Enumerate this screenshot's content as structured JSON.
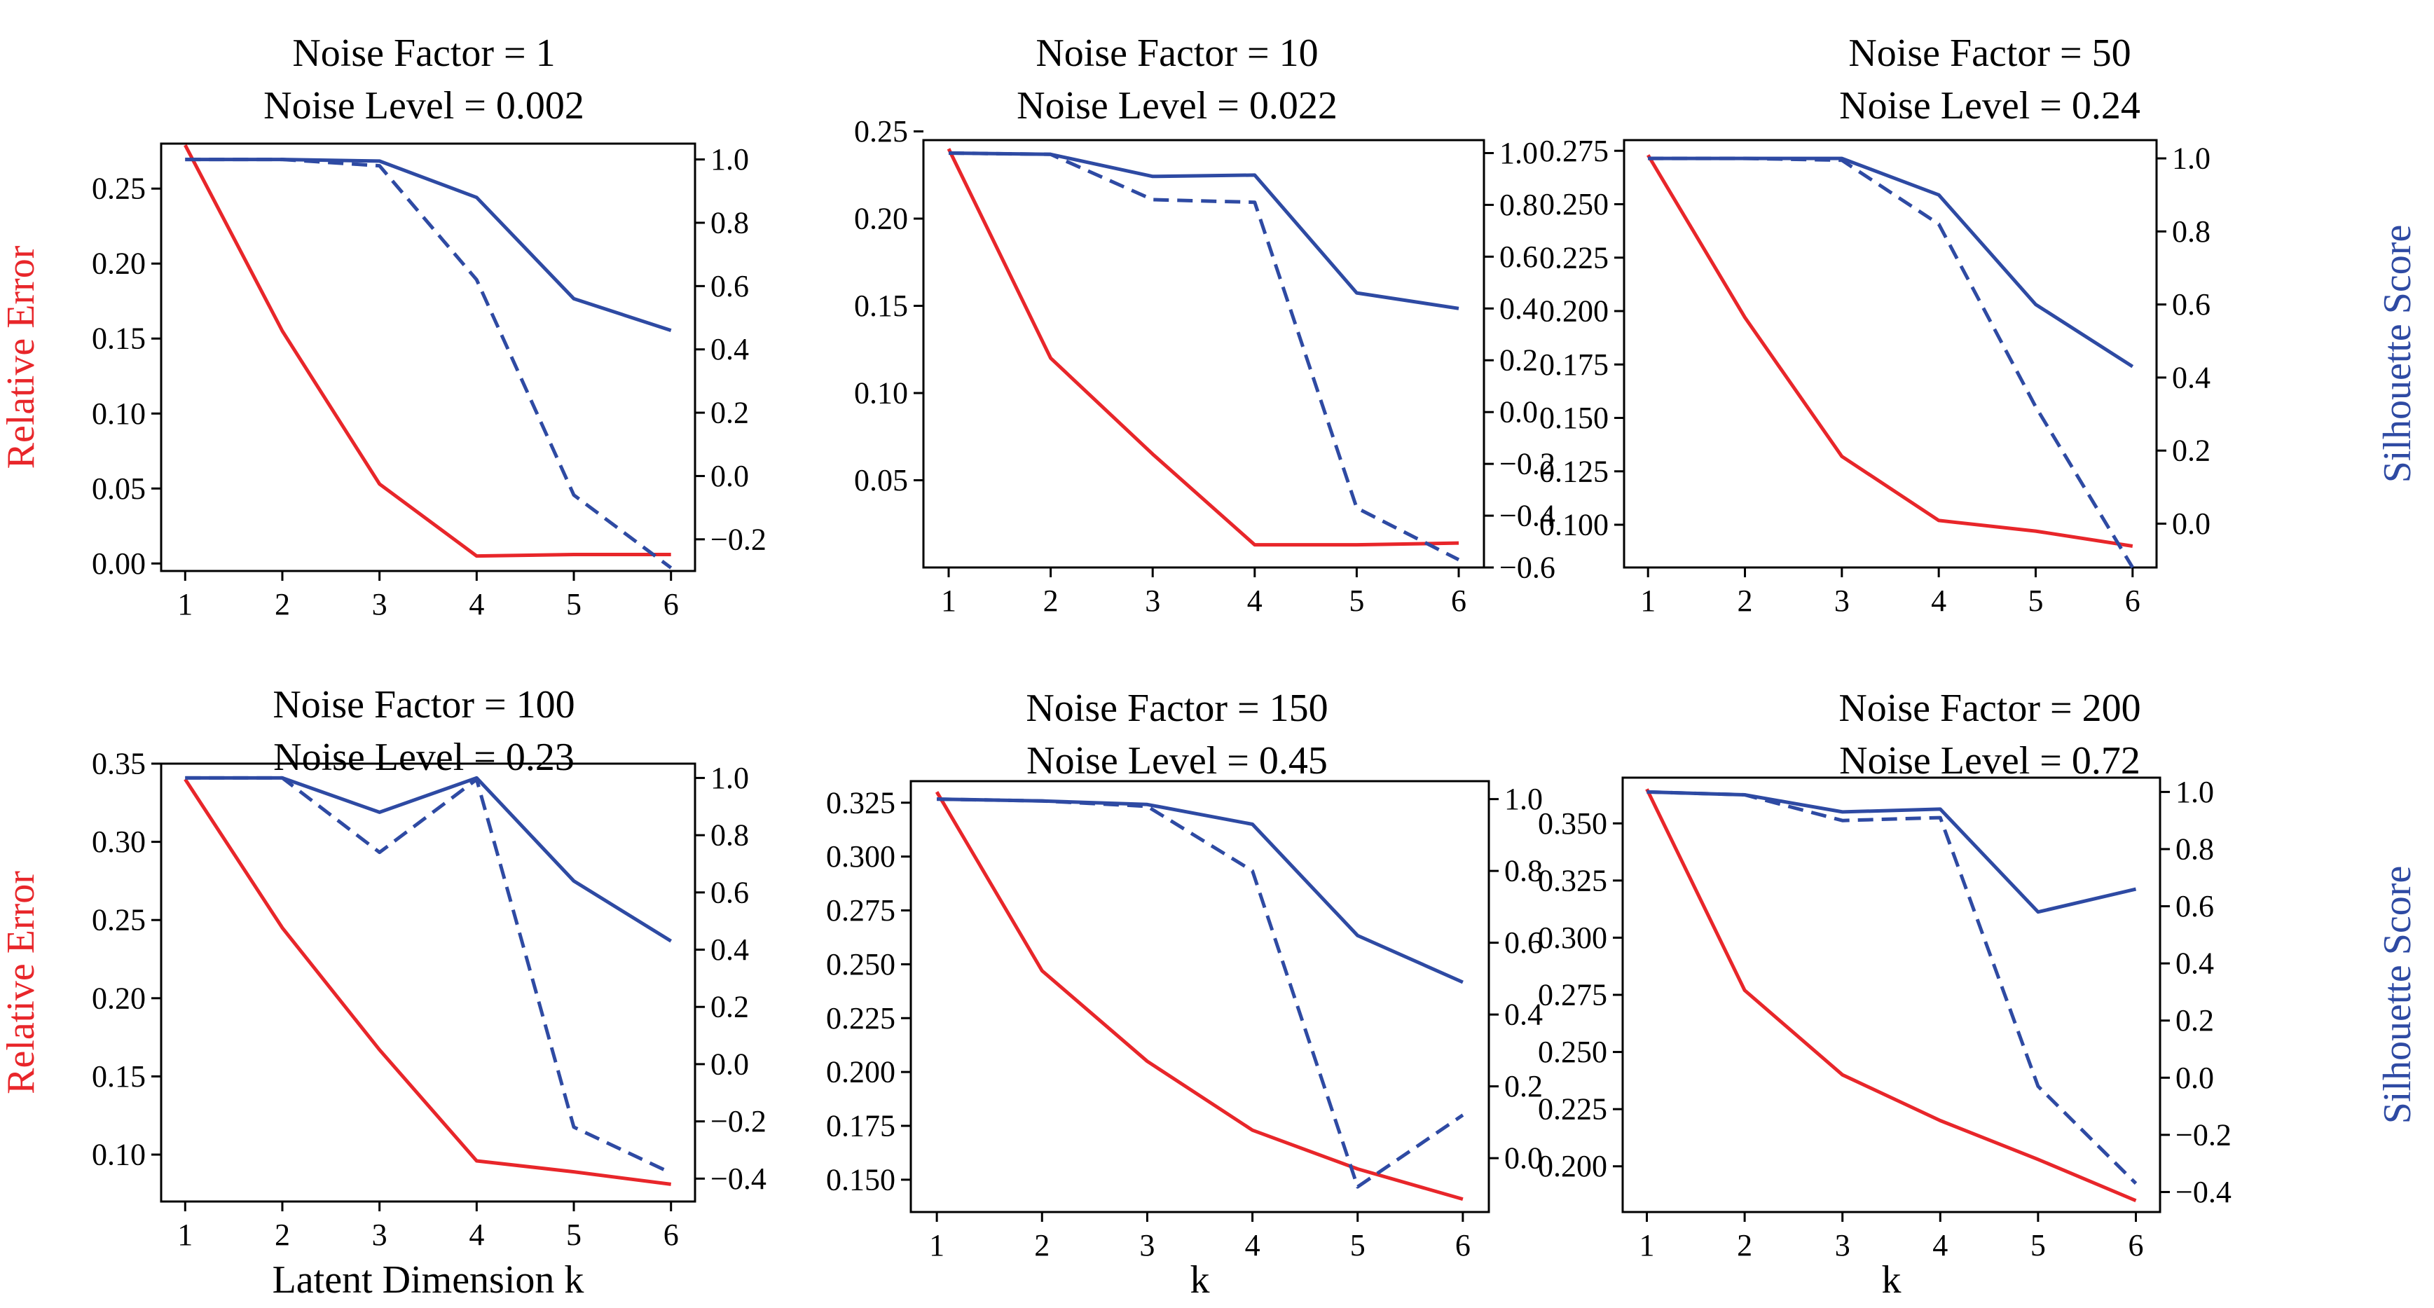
{
  "colors": {
    "relative_error": "#e8262a",
    "silhouette_score": "#2e4aa3",
    "axes": "#000000"
  },
  "chart_data": [
    {
      "type": "line",
      "title_lines": [
        "Noise Factor = 1",
        "Noise Level = 0.002"
      ],
      "x": [
        1,
        2,
        3,
        4,
        5,
        6
      ],
      "xlabel": "",
      "ylabel_left": "Relative Error",
      "ylabel_right": "",
      "left_ylim": [
        -0.005,
        0.28
      ],
      "left_ticks": [
        "0.00",
        "0.05",
        "0.10",
        "0.15",
        "0.20",
        "0.25"
      ],
      "right_ylim": [
        -0.3,
        1.05
      ],
      "right_ticks": [
        "−0.2",
        "0.0",
        "0.2",
        "0.4",
        "0.6",
        "0.8",
        "1.0"
      ],
      "series": [
        {
          "axis": "left",
          "style": "solid",
          "color": "#e8262a",
          "values": [
            0.279,
            0.155,
            0.053,
            0.005,
            0.006,
            0.006
          ]
        },
        {
          "axis": "right",
          "style": "solid",
          "color": "#2e4aa3",
          "values": [
            1.0,
            1.0,
            0.995,
            0.88,
            0.56,
            0.46
          ]
        },
        {
          "axis": "right",
          "style": "dashed",
          "color": "#2e4aa3",
          "values": [
            1.0,
            1.0,
            0.98,
            0.62,
            -0.06,
            -0.29
          ]
        }
      ]
    },
    {
      "type": "line",
      "title_lines": [
        "Noise Factor = 10",
        "Noise Level = 0.022"
      ],
      "x": [
        1,
        2,
        3,
        4,
        5,
        6
      ],
      "xlabel": "",
      "ylabel_left": "",
      "ylabel_right": "",
      "left_ylim": [
        0.0,
        0.245
      ],
      "left_ticks": [
        "0.05",
        "0.10",
        "0.15",
        "0.20",
        "0.25"
      ],
      "right_ylim": [
        -0.6,
        1.05
      ],
      "right_ticks": [
        "−0.6",
        "−0.4",
        "−0.2",
        "0.0",
        "0.2",
        "0.4",
        "0.6",
        "0.8",
        "1.0"
      ],
      "series": [
        {
          "axis": "left",
          "style": "solid",
          "color": "#e8262a",
          "values": [
            0.24,
            0.12,
            0.065,
            0.013,
            0.013,
            0.014
          ]
        },
        {
          "axis": "right",
          "style": "solid",
          "color": "#2e4aa3",
          "values": [
            1.0,
            0.995,
            0.91,
            0.915,
            0.46,
            0.4
          ]
        },
        {
          "axis": "right",
          "style": "dashed",
          "color": "#2e4aa3",
          "values": [
            1.0,
            0.995,
            0.82,
            0.81,
            -0.37,
            -0.57
          ]
        }
      ]
    },
    {
      "type": "line",
      "title_lines": [
        "Noise Factor = 50",
        "Noise Level = 0.24"
      ],
      "x": [
        1,
        2,
        3,
        4,
        5,
        6
      ],
      "xlabel": "",
      "ylabel_left": "",
      "ylabel_right": "Silhouette Score",
      "left_ylim": [
        0.08,
        0.28
      ],
      "left_ticks": [
        "0.100",
        "0.125",
        "0.150",
        "0.175",
        "0.200",
        "0.225",
        "0.250",
        "0.275"
      ],
      "right_ylim": [
        -0.12,
        1.05
      ],
      "right_ticks": [
        "0.0",
        "0.2",
        "0.4",
        "0.6",
        "0.8",
        "1.0"
      ],
      "series": [
        {
          "axis": "left",
          "style": "solid",
          "color": "#e8262a",
          "values": [
            0.273,
            0.197,
            0.132,
            0.102,
            0.097,
            0.09
          ]
        },
        {
          "axis": "right",
          "style": "solid",
          "color": "#2e4aa3",
          "values": [
            1.0,
            1.0,
            1.0,
            0.9,
            0.6,
            0.43
          ]
        },
        {
          "axis": "right",
          "style": "dashed",
          "color": "#2e4aa3",
          "values": [
            1.0,
            1.0,
            0.995,
            0.82,
            0.32,
            -0.12
          ]
        }
      ]
    },
    {
      "type": "line",
      "title_lines": [
        "Noise Factor = 100",
        "Noise Level = 0.23"
      ],
      "x": [
        1,
        2,
        3,
        4,
        5,
        6
      ],
      "xlabel": "Latent Dimension k",
      "ylabel_left": "Relative Error",
      "ylabel_right": "",
      "left_ylim": [
        0.07,
        0.35
      ],
      "left_ticks": [
        "0.10",
        "0.15",
        "0.20",
        "0.25",
        "0.30",
        "0.35"
      ],
      "right_ylim": [
        -0.48,
        1.05
      ],
      "right_ticks": [
        "−0.4",
        "−0.2",
        "0.0",
        "0.2",
        "0.4",
        "0.6",
        "0.8",
        "1.0"
      ],
      "series": [
        {
          "axis": "left",
          "style": "solid",
          "color": "#e8262a",
          "values": [
            0.34,
            0.245,
            0.167,
            0.096,
            0.089,
            0.081
          ]
        },
        {
          "axis": "right",
          "style": "solid",
          "color": "#2e4aa3",
          "values": [
            1.0,
            1.0,
            0.88,
            1.0,
            0.64,
            0.43
          ]
        },
        {
          "axis": "right",
          "style": "dashed",
          "color": "#2e4aa3",
          "values": [
            1.0,
            1.0,
            0.74,
            0.995,
            -0.22,
            -0.38
          ]
        }
      ]
    },
    {
      "type": "line",
      "title_lines": [
        "Noise Factor = 150",
        "Noise Level = 0.45"
      ],
      "x": [
        1,
        2,
        3,
        4,
        5,
        6
      ],
      "xlabel": "k",
      "ylabel_left": "",
      "ylabel_right": "",
      "left_ylim": [
        0.135,
        0.335
      ],
      "left_ticks": [
        "0.150",
        "0.175",
        "0.200",
        "0.225",
        "0.250",
        "0.275",
        "0.300",
        "0.325"
      ],
      "right_ylim": [
        -0.15,
        1.05
      ],
      "right_ticks": [
        "0.0",
        "0.2",
        "0.4",
        "0.6",
        "0.8",
        "1.0"
      ],
      "series": [
        {
          "axis": "left",
          "style": "solid",
          "color": "#e8262a",
          "values": [
            0.33,
            0.247,
            0.205,
            0.173,
            0.155,
            0.141
          ]
        },
        {
          "axis": "right",
          "style": "solid",
          "color": "#2e4aa3",
          "values": [
            1.0,
            0.995,
            0.985,
            0.93,
            0.62,
            0.49
          ]
        },
        {
          "axis": "right",
          "style": "dashed",
          "color": "#2e4aa3",
          "values": [
            1.0,
            0.995,
            0.98,
            0.8,
            -0.08,
            0.12
          ]
        }
      ]
    },
    {
      "type": "line",
      "title_lines": [
        "Noise Factor = 200",
        "Noise Level = 0.72"
      ],
      "x": [
        1,
        2,
        3,
        4,
        5,
        6
      ],
      "xlabel": "k",
      "ylabel_left": "",
      "ylabel_right": "Silhouette Score",
      "left_ylim": [
        0.18,
        0.37
      ],
      "left_ticks": [
        "0.200",
        "0.225",
        "0.250",
        "0.275",
        "0.300",
        "0.325",
        "0.350"
      ],
      "right_ylim": [
        -0.47,
        1.05
      ],
      "right_ticks": [
        "−0.4",
        "−0.2",
        "0.0",
        "0.2",
        "0.4",
        "0.6",
        "0.8",
        "1.0"
      ],
      "series": [
        {
          "axis": "left",
          "style": "solid",
          "color": "#e8262a",
          "values": [
            0.365,
            0.277,
            0.24,
            0.22,
            0.203,
            0.185
          ]
        },
        {
          "axis": "right",
          "style": "solid",
          "color": "#2e4aa3",
          "values": [
            1.0,
            0.99,
            0.93,
            0.94,
            0.58,
            0.66
          ]
        },
        {
          "axis": "right",
          "style": "dashed",
          "color": "#2e4aa3",
          "values": [
            1.0,
            0.99,
            0.9,
            0.91,
            -0.03,
            -0.37
          ]
        }
      ]
    }
  ]
}
